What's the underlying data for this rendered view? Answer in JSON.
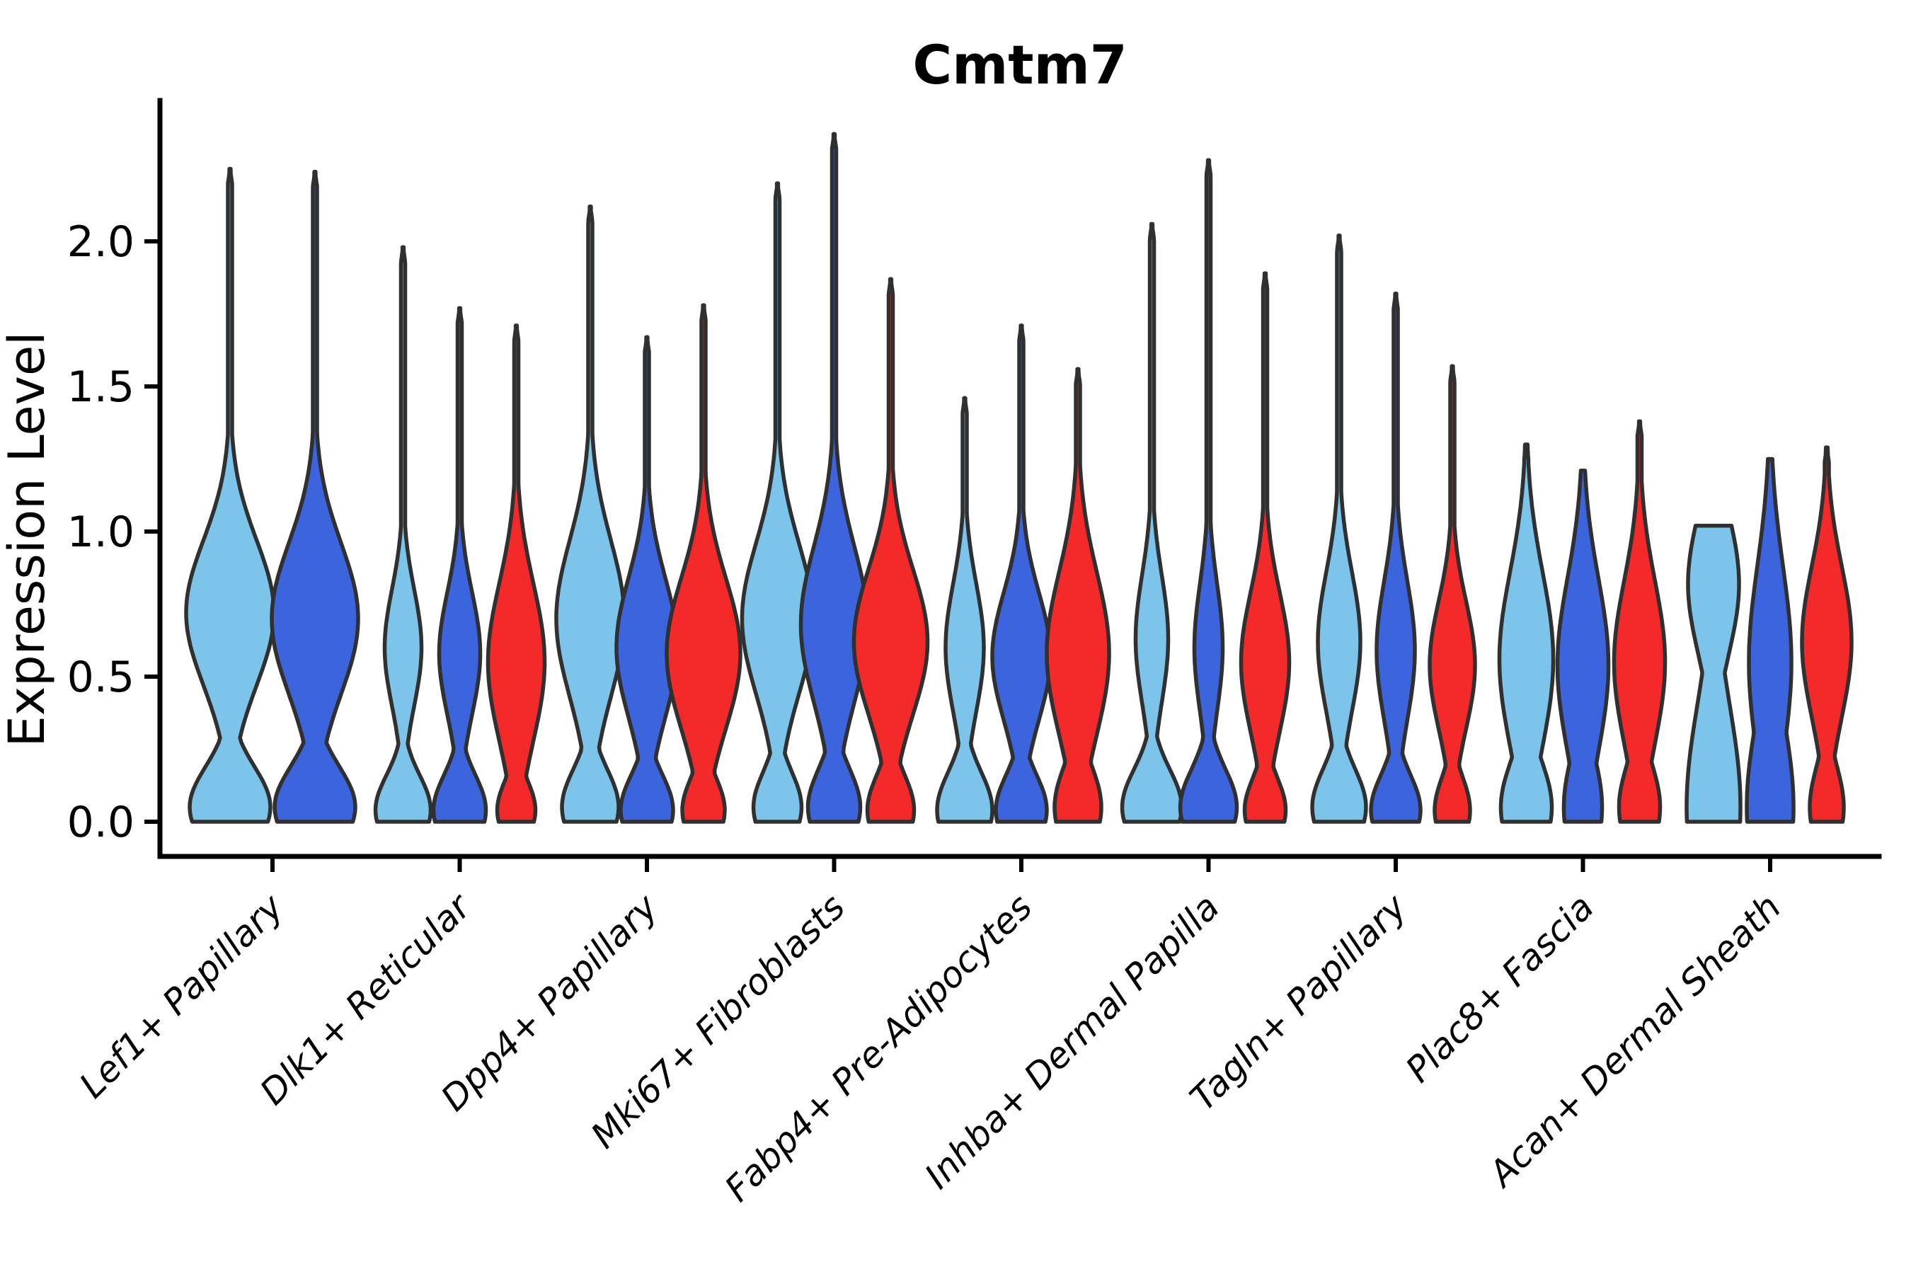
{
  "title": "Cmtm7",
  "ylabel": "Expression Level",
  "chart_data": {
    "type": "violin",
    "title": "Cmtm7",
    "xlabel": "",
    "ylabel": "Expression Level",
    "ylim": [
      -0.12,
      2.49
    ],
    "yticks": [
      0.0,
      0.5,
      1.0,
      1.5,
      2.0
    ],
    "ytick_labels": [
      "0.0",
      "0.5",
      "1.0",
      "1.5",
      "2.0"
    ],
    "grid": false,
    "legend": "none",
    "background_color": "#FFFFFF",
    "axis_color": "#000000",
    "violin_outline_color": "#303030",
    "categories": [
      "Lef1+ Papillary",
      "Dlk1+ Reticular",
      "Dpp4+ Papillary",
      "Mki67+ Fibroblasts",
      "Fabp4+ Pre-Adipocytes",
      "Inhba+ Dermal Papilla",
      "Tagln+ Papillary",
      "Plac8+ Fascia",
      "Acan+ Dermal Sheath"
    ],
    "series": [
      {
        "name": "light-blue",
        "color": "#7CC4EA"
      },
      {
        "name": "royal-blue",
        "color": "#3C64DC"
      },
      {
        "name": "red",
        "color": "#F42A2A"
      }
    ],
    "violins_note": "Each violin: cat=category index, ser=series index, off=horizontal offset px from category tick, tip=max expression value, wz/zc/zs=zero-expression bump half-width(px)/center/sigma, wb/bc/bs=main density bulge half-width(px)/center/sigma, flat=truncated flat top",
    "violins": [
      {
        "cat": 0,
        "ser": 0,
        "off": -60,
        "tip": 2.25,
        "wz": 57,
        "zc": 0.05,
        "zs": 0.14,
        "wb": 62,
        "bc": 0.72,
        "bs": 0.25,
        "flat": false
      },
      {
        "cat": 0,
        "ser": 1,
        "off": 60,
        "tip": 2.24,
        "wz": 57,
        "zc": 0.05,
        "zs": 0.14,
        "wb": 61,
        "bc": 0.7,
        "bs": 0.26,
        "flat": false
      },
      {
        "cat": 1,
        "ser": 0,
        "off": -80,
        "tip": 1.98,
        "wz": 39,
        "zc": 0.04,
        "zs": 0.12,
        "wb": 26,
        "bc": 0.6,
        "bs": 0.2,
        "flat": false
      },
      {
        "cat": 1,
        "ser": 1,
        "off": 0,
        "tip": 1.77,
        "wz": 37,
        "zc": 0.04,
        "zs": 0.12,
        "wb": 29,
        "bc": 0.58,
        "bs": 0.21,
        "flat": false
      },
      {
        "cat": 1,
        "ser": 2,
        "off": 80,
        "tip": 1.71,
        "wz": 27,
        "zc": 0.04,
        "zs": 0.1,
        "wb": 40,
        "bc": 0.55,
        "bs": 0.27,
        "flat": false
      },
      {
        "cat": 2,
        "ser": 0,
        "off": -80,
        "tip": 2.12,
        "wz": 40,
        "zc": 0.05,
        "zs": 0.13,
        "wb": 48,
        "bc": 0.7,
        "bs": 0.27,
        "flat": false
      },
      {
        "cat": 2,
        "ser": 1,
        "off": 0,
        "tip": 1.67,
        "wz": 37,
        "zc": 0.04,
        "zs": 0.12,
        "wb": 43,
        "bc": 0.6,
        "bs": 0.24,
        "flat": false
      },
      {
        "cat": 2,
        "ser": 2,
        "off": 80,
        "tip": 1.78,
        "wz": 30,
        "zc": 0.04,
        "zs": 0.11,
        "wb": 52,
        "bc": 0.58,
        "bs": 0.26,
        "flat": false
      },
      {
        "cat": 3,
        "ser": 0,
        "off": -80,
        "tip": 2.2,
        "wz": 34,
        "zc": 0.05,
        "zs": 0.12,
        "wb": 50,
        "bc": 0.7,
        "bs": 0.26,
        "flat": false
      },
      {
        "cat": 3,
        "ser": 1,
        "off": 0,
        "tip": 2.37,
        "wz": 37,
        "zc": 0.05,
        "zs": 0.13,
        "wb": 47,
        "bc": 0.68,
        "bs": 0.27,
        "flat": false
      },
      {
        "cat": 3,
        "ser": 2,
        "off": 80,
        "tip": 1.87,
        "wz": 33,
        "zc": 0.04,
        "zs": 0.12,
        "wb": 52,
        "bc": 0.62,
        "bs": 0.25,
        "flat": false
      },
      {
        "cat": 4,
        "ser": 0,
        "off": -80,
        "tip": 1.46,
        "wz": 39,
        "zc": 0.04,
        "zs": 0.13,
        "wb": 27,
        "bc": 0.6,
        "bs": 0.22,
        "flat": false
      },
      {
        "cat": 4,
        "ser": 1,
        "off": 0,
        "tip": 1.71,
        "wz": 36,
        "zc": 0.04,
        "zs": 0.12,
        "wb": 41,
        "bc": 0.57,
        "bs": 0.22,
        "flat": false
      },
      {
        "cat": 4,
        "ser": 2,
        "off": 80,
        "tip": 1.56,
        "wz": 33,
        "zc": 0.05,
        "zs": 0.14,
        "wb": 44,
        "bc": 0.58,
        "bs": 0.28,
        "flat": false
      },
      {
        "cat": 5,
        "ser": 0,
        "off": -80,
        "tip": 2.06,
        "wz": 42,
        "zc": 0.05,
        "zs": 0.13,
        "wb": 23,
        "bc": 0.63,
        "bs": 0.22,
        "flat": false
      },
      {
        "cat": 5,
        "ser": 1,
        "off": 0,
        "tip": 2.28,
        "wz": 40,
        "zc": 0.05,
        "zs": 0.13,
        "wb": 20,
        "bc": 0.6,
        "bs": 0.22,
        "flat": false
      },
      {
        "cat": 5,
        "ser": 2,
        "off": 80,
        "tip": 1.89,
        "wz": 29,
        "zc": 0.04,
        "zs": 0.11,
        "wb": 34,
        "bc": 0.55,
        "bs": 0.24,
        "flat": false
      },
      {
        "cat": 6,
        "ser": 0,
        "off": -80,
        "tip": 2.02,
        "wz": 38,
        "zc": 0.05,
        "zs": 0.13,
        "wb": 30,
        "bc": 0.62,
        "bs": 0.24,
        "flat": false
      },
      {
        "cat": 6,
        "ser": 1,
        "off": 0,
        "tip": 1.82,
        "wz": 35,
        "zc": 0.04,
        "zs": 0.12,
        "wb": 27,
        "bc": 0.59,
        "bs": 0.24,
        "flat": false
      },
      {
        "cat": 6,
        "ser": 2,
        "off": 80,
        "tip": 1.57,
        "wz": 25,
        "zc": 0.04,
        "zs": 0.11,
        "wb": 32,
        "bc": 0.54,
        "bs": 0.22,
        "flat": false
      },
      {
        "cat": 7,
        "ser": 0,
        "off": -80,
        "tip": 1.3,
        "wz": 36,
        "zc": 0.05,
        "zs": 0.16,
        "wb": 38,
        "bc": 0.56,
        "bs": 0.3,
        "flat": false
      },
      {
        "cat": 7,
        "ser": 1,
        "off": 0,
        "tip": 1.21,
        "wz": 27,
        "zc": 0.05,
        "zs": 0.18,
        "wb": 36,
        "bc": 0.54,
        "bs": 0.3,
        "flat": false
      },
      {
        "cat": 7,
        "ser": 2,
        "off": 80,
        "tip": 1.38,
        "wz": 29,
        "zc": 0.05,
        "zs": 0.15,
        "wb": 36,
        "bc": 0.55,
        "bs": 0.28,
        "flat": false
      },
      {
        "cat": 8,
        "ser": 0,
        "off": -80,
        "tip": 1.02,
        "wz": 38,
        "zc": 0.05,
        "zs": 0.35,
        "wb": 36,
        "bc": 0.82,
        "bs": 0.24,
        "flat": true
      },
      {
        "cat": 8,
        "ser": 1,
        "off": 0,
        "tip": 1.25,
        "wz": 33,
        "zc": 0.05,
        "zs": 0.3,
        "wb": 30,
        "bc": 0.55,
        "bs": 0.33,
        "flat": false
      },
      {
        "cat": 8,
        "ser": 2,
        "off": 80,
        "tip": 1.29,
        "wz": 24,
        "zc": 0.05,
        "zs": 0.14,
        "wb": 35,
        "bc": 0.62,
        "bs": 0.26,
        "flat": false
      }
    ]
  }
}
